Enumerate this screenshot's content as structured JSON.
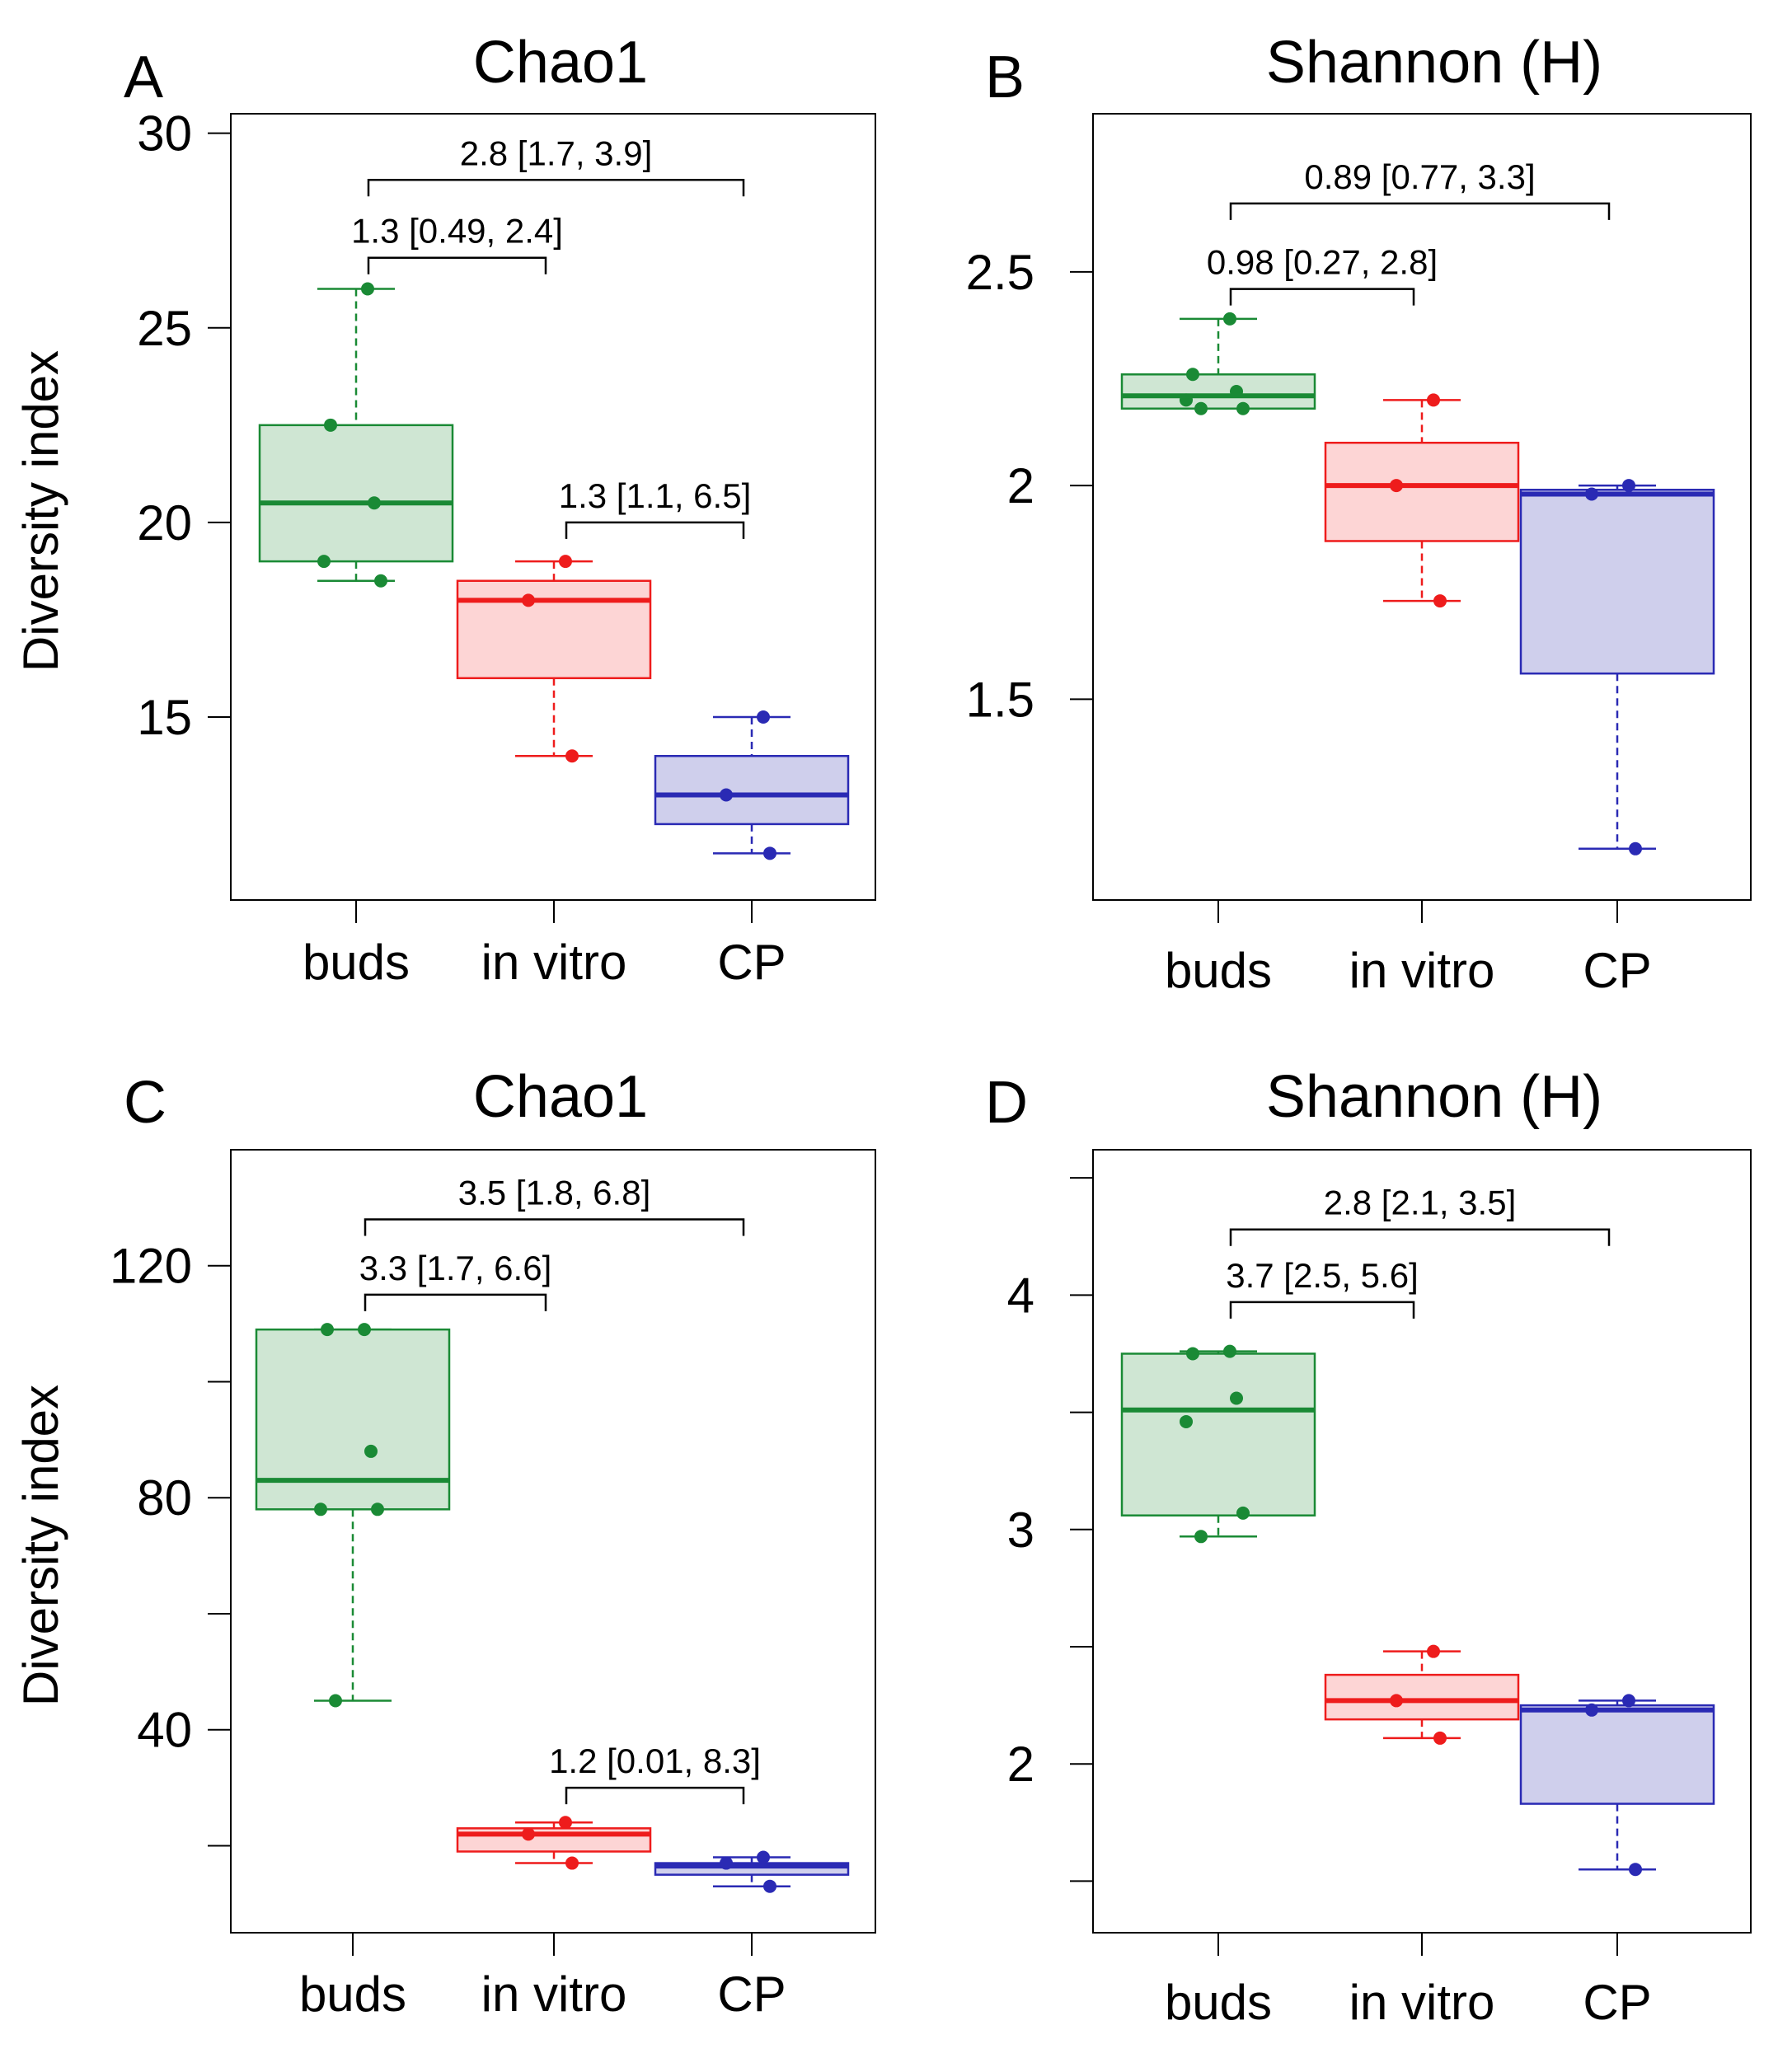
{
  "figure": {
    "panels": [
      {
        "letter": "A",
        "chart_data": {
          "type": "box",
          "title": "Chao1",
          "ylabel": "Diversity index",
          "categories": [
            "buds",
            "in vitro",
            "CP"
          ],
          "ylim": [
            10.3,
            30.5
          ],
          "yticks": [
            15,
            20,
            25,
            30
          ],
          "ytick_labels": [
            "15",
            "20",
            "25",
            "30"
          ],
          "boxes": [
            {
              "group": "buds",
              "color": "#1a8a35",
              "fill": "#cfe6d3",
              "whisker_low": 18.5,
              "q1": 19.0,
              "median": 20.5,
              "q3": 22.5,
              "whisker_high": 26.0,
              "points": [
                26.0,
                22.5,
                20.5,
                19.0,
                18.5
              ]
            },
            {
              "group": "in vitro",
              "color": "#ee1c1c",
              "fill": "#fdd5d5",
              "whisker_low": 14.0,
              "q1": 16.0,
              "median": 18.0,
              "q3": 18.5,
              "whisker_high": 19.0,
              "points": [
                19.0,
                18.0,
                14.0
              ]
            },
            {
              "group": "CP",
              "color": "#2a2ab4",
              "fill": "#cfcfec",
              "whisker_low": 11.5,
              "q1": 12.25,
              "median": 13.0,
              "q3": 14.0,
              "whisker_high": 15.0,
              "points": [
                15.0,
                13.0,
                11.5
              ]
            }
          ],
          "comparisons": [
            {
              "from": "buds",
              "to": "CP",
              "label": "2.8  [1.7, 3.9]",
              "y": 28.8
            },
            {
              "from": "buds",
              "to": "in vitro",
              "label": "1.3  [0.49, 2.4]",
              "y": 26.8
            },
            {
              "from": "in vitro",
              "to": "CP",
              "label": "1.3  [1.1, 6.5]",
              "y": 20.0
            }
          ]
        }
      },
      {
        "letter": "B",
        "chart_data": {
          "type": "box",
          "title": "Shannon (H)",
          "ylabel": "",
          "categories": [
            "buds",
            "in vitro",
            "CP"
          ],
          "ylim": [
            1.03,
            2.87
          ],
          "yticks": [
            1.5,
            2.0,
            2.5
          ],
          "ytick_labels": [
            "1.5",
            "2",
            "2.5"
          ],
          "boxes": [
            {
              "group": "buds",
              "color": "#1a8a35",
              "fill": "#cfe6d3",
              "whisker_low": 2.18,
              "q1": 2.18,
              "median": 2.21,
              "q3": 2.26,
              "whisker_high": 2.39,
              "points": [
                2.39,
                2.26,
                2.22,
                2.2,
                2.18,
                2.18
              ]
            },
            {
              "group": "in vitro",
              "color": "#ee1c1c",
              "fill": "#fdd5d5",
              "whisker_low": 1.73,
              "q1": 1.87,
              "median": 2.0,
              "q3": 2.1,
              "whisker_high": 2.2,
              "points": [
                2.2,
                2.0,
                1.73
              ]
            },
            {
              "group": "CP",
              "color": "#2a2ab4",
              "fill": "#cfcfec",
              "whisker_low": 1.15,
              "q1": 1.56,
              "median": 1.98,
              "q3": 1.99,
              "whisker_high": 2.0,
              "points": [
                2.0,
                1.98,
                1.15
              ]
            }
          ],
          "comparisons": [
            {
              "from": "buds",
              "to": "CP",
              "label": "0.89  [0.77, 3.3]",
              "y": 2.66
            },
            {
              "from": "buds",
              "to": "in vitro",
              "label": "0.98  [0.27, 2.8]",
              "y": 2.46
            }
          ]
        }
      },
      {
        "letter": "C",
        "chart_data": {
          "type": "box",
          "title": "Chao1",
          "ylabel": "Diversity index",
          "categories": [
            "buds",
            "in vitro",
            "CP"
          ],
          "ylim": [
            5,
            140
          ],
          "yticks": [
            20,
            40,
            60,
            80,
            100,
            120
          ],
          "ytick_labels": [
            "",
            "40",
            "",
            "80",
            "",
            "120"
          ],
          "boxes": [
            {
              "group": "buds",
              "color": "#1a8a35",
              "fill": "#cfe6d3",
              "whisker_low": 45,
              "q1": 78,
              "median": 83,
              "q3": 109,
              "whisker_high": 109,
              "points": [
                109,
                109,
                88,
                78,
                78,
                45
              ]
            },
            {
              "group": "in vitro",
              "color": "#ee1c1c",
              "fill": "#fdd5d5",
              "whisker_low": 17,
              "q1": 19,
              "median": 22,
              "q3": 23,
              "whisker_high": 24,
              "points": [
                24,
                22,
                17
              ]
            },
            {
              "group": "CP",
              "color": "#2a2ab4",
              "fill": "#cfcfec",
              "whisker_low": 13,
              "q1": 15,
              "median": 16.5,
              "q3": 17,
              "whisker_high": 18,
              "points": [
                18,
                17,
                13
              ]
            }
          ],
          "comparisons": [
            {
              "from": "buds",
              "to": "CP",
              "label": "3.5  [1.8, 6.8]",
              "y": 128
            },
            {
              "from": "buds",
              "to": "in vitro",
              "label": "3.3  [1.7, 6.6]",
              "y": 115
            },
            {
              "from": "in vitro",
              "to": "CP",
              "label": "1.2  [0.01, 8.3]",
              "y": 30
            }
          ]
        }
      },
      {
        "letter": "D",
        "chart_data": {
          "type": "box",
          "title": "Shannon (H)",
          "ylabel": "",
          "categories": [
            "buds",
            "in vitro",
            "CP"
          ],
          "ylim": [
            1.28,
            4.62
          ],
          "yticks": [
            1.5,
            2.0,
            2.5,
            3.0,
            3.5,
            4.0,
            4.5
          ],
          "ytick_labels": [
            "",
            "2",
            "",
            "3",
            "",
            "4",
            ""
          ],
          "boxes": [
            {
              "group": "buds",
              "color": "#1a8a35",
              "fill": "#cfe6d3",
              "whisker_low": 2.97,
              "q1": 3.06,
              "median": 3.51,
              "q3": 3.75,
              "whisker_high": 3.76,
              "points": [
                3.76,
                3.75,
                3.56,
                3.46,
                3.07,
                2.97
              ]
            },
            {
              "group": "in vitro",
              "color": "#ee1c1c",
              "fill": "#fdd5d5",
              "whisker_low": 2.11,
              "q1": 2.19,
              "median": 2.27,
              "q3": 2.38,
              "whisker_high": 2.48,
              "points": [
                2.48,
                2.27,
                2.11
              ]
            },
            {
              "group": "CP",
              "color": "#2a2ab4",
              "fill": "#cfcfec",
              "whisker_low": 1.55,
              "q1": 1.83,
              "median": 2.23,
              "q3": 2.25,
              "whisker_high": 2.27,
              "points": [
                2.27,
                2.23,
                1.55
              ]
            }
          ],
          "comparisons": [
            {
              "from": "buds",
              "to": "CP",
              "label": "2.8  [2.1, 3.5]",
              "y": 4.28
            },
            {
              "from": "buds",
              "to": "in vitro",
              "label": "3.7  [2.5, 5.6]",
              "y": 3.97
            }
          ]
        }
      }
    ]
  }
}
